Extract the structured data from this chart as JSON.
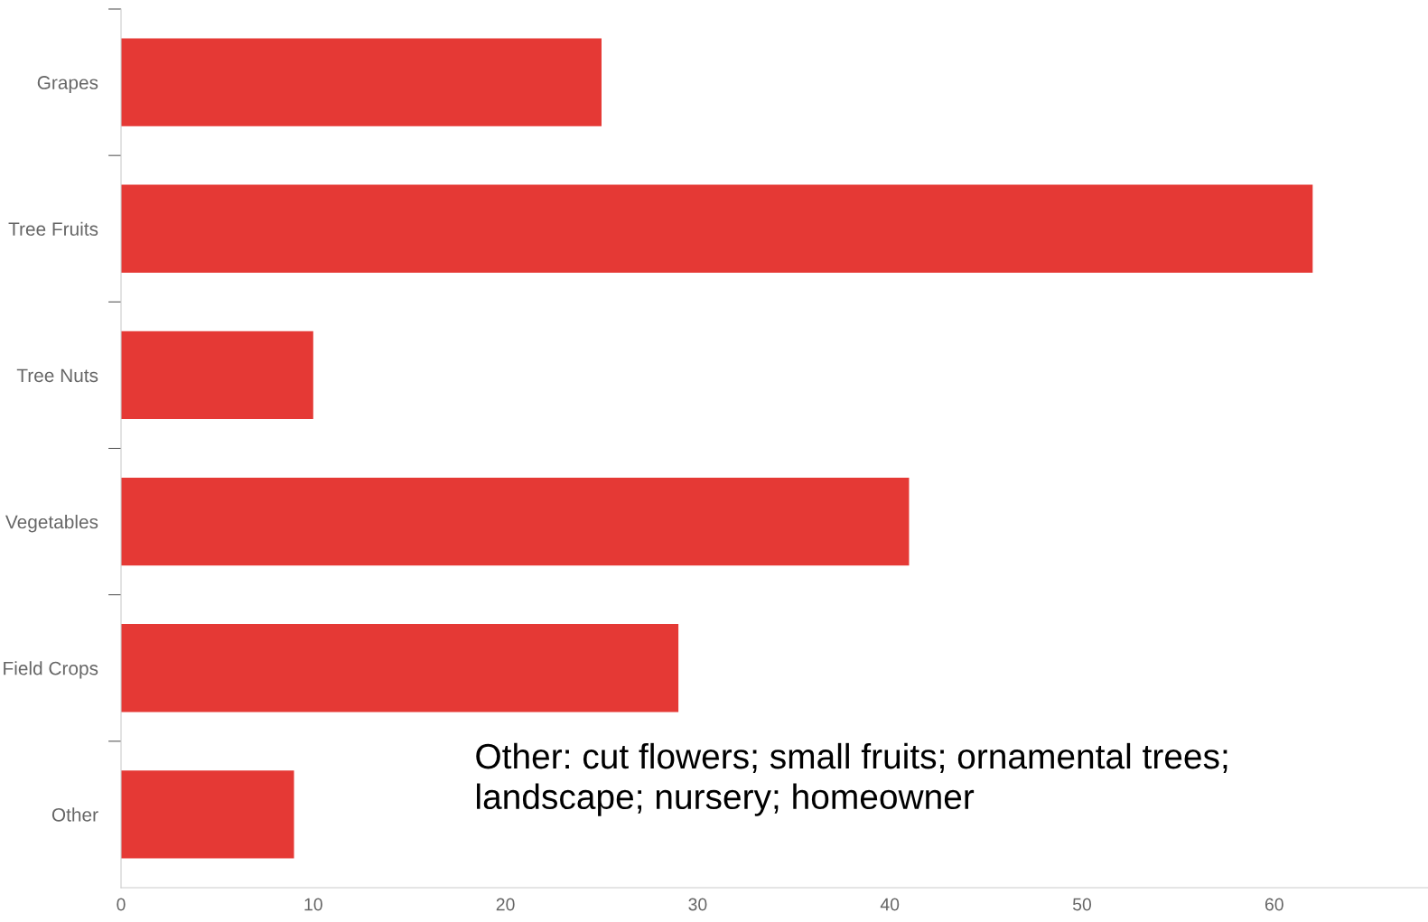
{
  "chart_data": {
    "type": "bar",
    "orientation": "horizontal",
    "categories": [
      "Grapes",
      "Tree Fruits",
      "Tree Nuts",
      "Vegetables",
      "Field Crops",
      "Other"
    ],
    "values": [
      25,
      62,
      10,
      41,
      29,
      9
    ],
    "color": "#e53935",
    "xlim": [
      0,
      68
    ],
    "xticks": [
      0,
      10,
      20,
      30,
      40,
      50,
      60
    ],
    "grid": false,
    "legend": false,
    "annotations": [
      "Other: cut flowers; small fruits; ornamental trees;\nlandscape; nursery; homeowner"
    ]
  }
}
